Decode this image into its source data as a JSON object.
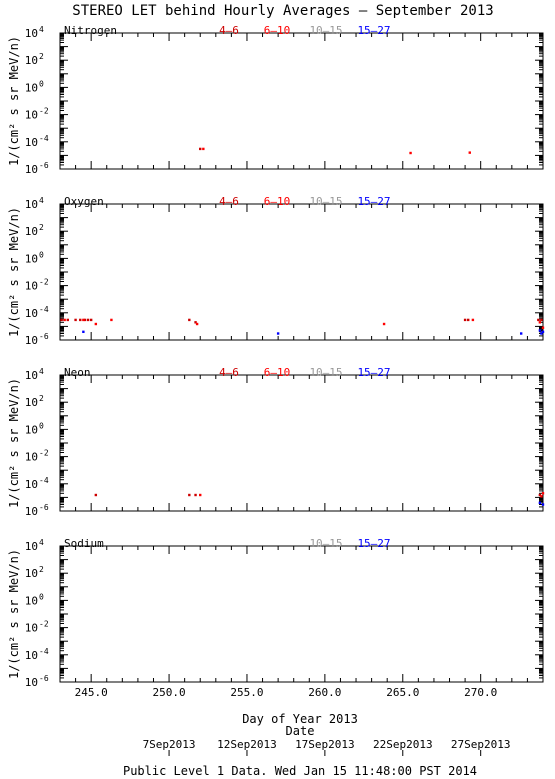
{
  "page": {
    "title": "STEREO LET behind Hourly Averages – September 2013",
    "footer": "Public Level 1 Data. Wed Jan 15 11:48:00 PST 2014"
  },
  "legend": [
    {
      "label": "4–6",
      "color": "#cc0000"
    },
    {
      "label": "6–10",
      "color": "#ff0000"
    },
    {
      "label": "10–15",
      "color": "#999999"
    },
    {
      "label": "15–27",
      "color": "#0000ff"
    }
  ],
  "chart_data": {
    "type": "scatter",
    "title": "STEREO LET behind Hourly Averages – September 2013",
    "xlabel": "Day of Year 2013",
    "ylabel": "1/(cm² s sr MeV/n)",
    "ylog": true,
    "xlim": [
      243.0,
      274.0
    ],
    "ylim": [
      1e-06,
      10000.0
    ],
    "x_ticks": [
      {
        "value": 245,
        "label": "245.0"
      },
      {
        "value": 250,
        "label": "250.0"
      },
      {
        "value": 255,
        "label": "255.0"
      },
      {
        "value": 260,
        "label": "260.0"
      },
      {
        "value": 265,
        "label": "265.0"
      },
      {
        "value": 270,
        "label": "270.0"
      }
    ],
    "y_ticks": [
      {
        "value": 10000,
        "base": "10",
        "exp": "4"
      },
      {
        "value": 100,
        "base": "10",
        "exp": "2"
      },
      {
        "value": 1,
        "base": "10",
        "exp": "0"
      },
      {
        "value": 0.01,
        "base": "10",
        "exp": "-2"
      },
      {
        "value": 0.0001,
        "base": "10",
        "exp": "-4"
      },
      {
        "value": 1e-06,
        "base": "10",
        "exp": "-6"
      }
    ],
    "date_label": "Date",
    "date_ticks": [
      {
        "value": 250,
        "label": "7Sep2013"
      },
      {
        "value": 255,
        "label": "12Sep2013"
      },
      {
        "value": 260,
        "label": "17Sep2013"
      },
      {
        "value": 265,
        "label": "22Sep2013"
      },
      {
        "value": 270,
        "label": "27Sep2013"
      }
    ],
    "panels": [
      {
        "name": "Nitrogen",
        "legend_shown": [
          0,
          1,
          2,
          3
        ],
        "series": [
          {
            "legend": 0,
            "points": [
              [
                252.0,
                3e-05
              ]
            ]
          },
          {
            "legend": 1,
            "points": [
              [
                252.2,
                3e-05
              ],
              [
                265.5,
                1.5e-05
              ],
              [
                269.3,
                1.6e-05
              ]
            ]
          },
          {
            "legend": 2,
            "points": []
          },
          {
            "legend": 3,
            "points": []
          }
        ]
      },
      {
        "name": "Oxygen",
        "legend_shown": [
          0,
          1,
          2,
          3
        ],
        "series": [
          {
            "legend": 0,
            "points": [
              [
                243.1,
                3e-05
              ],
              [
                243.5,
                3e-05
              ],
              [
                244.0,
                3e-05
              ],
              [
                244.3,
                3e-05
              ],
              [
                244.6,
                3e-05
              ],
              [
                244.8,
                3e-05
              ],
              [
                245.0,
                3e-05
              ],
              [
                251.3,
                3e-05
              ],
              [
                251.7,
                2e-05
              ],
              [
                269.0,
                3e-05
              ],
              [
                269.2,
                3e-05
              ],
              [
                273.7,
                3e-05
              ],
              [
                273.9,
                3e-05
              ]
            ]
          },
          {
            "legend": 1,
            "points": [
              [
                243.3,
                3e-05
              ],
              [
                244.5,
                3e-05
              ],
              [
                245.3,
                1.5e-05
              ],
              [
                246.3,
                3e-05
              ],
              [
                251.8,
                1.5e-05
              ],
              [
                263.8,
                1.5e-05
              ],
              [
                269.5,
                3e-05
              ],
              [
                273.8,
                2e-05
              ],
              [
                274.0,
                8e-06
              ]
            ]
          },
          {
            "legend": 2,
            "points": []
          },
          {
            "legend": 3,
            "points": [
              [
                244.5,
                4e-06
              ],
              [
                257.0,
                3e-06
              ],
              [
                272.6,
                3e-06
              ],
              [
                273.8,
                5e-06
              ],
              [
                273.9,
                3e-06
              ],
              [
                274.0,
                4e-06
              ]
            ]
          }
        ]
      },
      {
        "name": "Neon",
        "legend_shown": [
          0,
          1,
          2,
          3
        ],
        "series": [
          {
            "legend": 0,
            "points": [
              [
                245.3,
                1.5e-05
              ],
              [
                251.3,
                1.5e-05
              ],
              [
                251.7,
                1.5e-05
              ],
              [
                273.8,
                1.5e-05
              ]
            ]
          },
          {
            "legend": 1,
            "points": [
              [
                252.0,
                1.5e-05
              ],
              [
                273.9,
                1.2e-05
              ],
              [
                274.0,
                2e-05
              ]
            ]
          },
          {
            "legend": 2,
            "points": []
          },
          {
            "legend": 3,
            "points": [
              [
                273.8,
                4e-06
              ],
              [
                274.0,
                3e-06
              ]
            ]
          }
        ]
      },
      {
        "name": "Sodium",
        "legend_shown": [
          2,
          3
        ],
        "series": [
          {
            "legend": 2,
            "points": []
          },
          {
            "legend": 3,
            "points": []
          }
        ]
      }
    ]
  }
}
